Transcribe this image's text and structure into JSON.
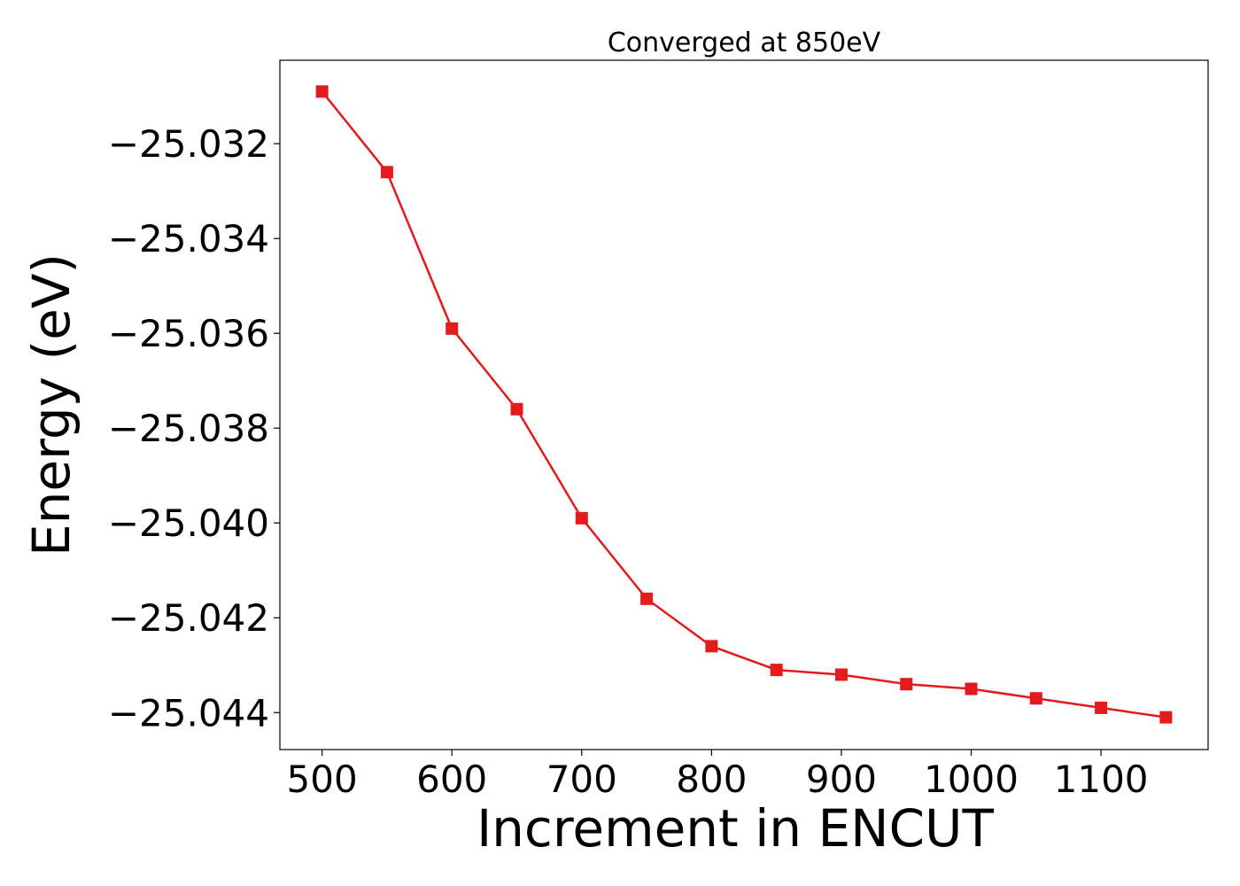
{
  "chart_data": {
    "type": "line",
    "title": "Converged at 850eV",
    "xlabel": "Increment in ENCUT",
    "ylabel": "Energy (eV)",
    "x": [
      500,
      550,
      600,
      650,
      700,
      750,
      800,
      850,
      900,
      950,
      1000,
      1050,
      1100,
      1150
    ],
    "series": [
      {
        "values": [
          -25.0309,
          -25.0326,
          -25.0359,
          -25.0376,
          -25.0399,
          -25.0416,
          -25.0426,
          -25.0431,
          -25.0432,
          -25.0434,
          -25.0435,
          -25.0437,
          -25.0439,
          -25.0441
        ],
        "color": "#e41a1c",
        "marker": "square"
      }
    ],
    "xlim": [
      467.5,
      1182.5
    ],
    "ylim": [
      -25.04478,
      -25.03024
    ],
    "xticks": [
      500,
      600,
      700,
      800,
      900,
      1000,
      1100
    ],
    "xtick_labels": [
      "500",
      "600",
      "700",
      "800",
      "900",
      "1000",
      "1100"
    ],
    "yticks": [
      -25.032,
      -25.034,
      -25.036,
      -25.038,
      -25.04,
      -25.042,
      -25.044
    ],
    "ytick_labels": [
      "−25.032",
      "−25.034",
      "−25.036",
      "−25.038",
      "−25.040",
      "−25.042",
      "−25.044"
    ],
    "grid": false,
    "legend": "none"
  }
}
